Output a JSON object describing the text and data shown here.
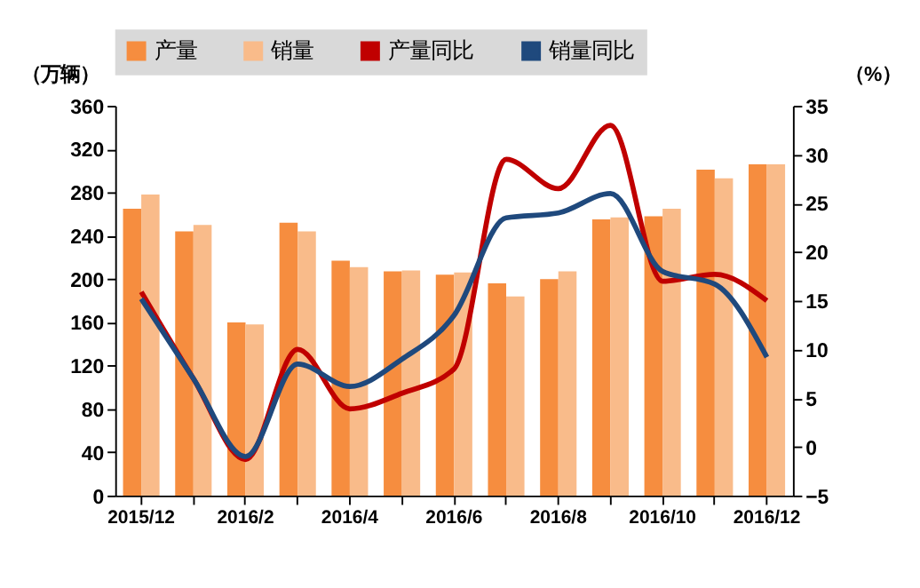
{
  "chart_data": {
    "type": "bar",
    "ylabel": "（万辆）",
    "y2label": "（%）",
    "categories": [
      "2015/12",
      null,
      "2016/2",
      null,
      "2016/4",
      null,
      "2016/6",
      null,
      "2016/8",
      null,
      "2016/10",
      null,
      "2016/12"
    ],
    "series": [
      {
        "name": "产量",
        "color": "#f68d3f",
        "values": [
          265,
          244,
          160,
          252,
          217,
          207,
          204,
          196,
          200,
          255,
          258,
          301,
          306
        ]
      },
      {
        "name": "销量",
        "color": "#f9bb8a",
        "values": [
          278,
          250,
          158,
          244,
          211,
          208,
          206,
          184,
          207,
          257,
          265,
          293,
          306
        ]
      },
      {
        "name": "产量同比",
        "type": "line",
        "axis": "y2",
        "color": "#c00000",
        "values": [
          15.9,
          7.0,
          -1.3,
          10.0,
          3.9,
          5.5,
          8.0,
          29.5,
          26.5,
          33.0,
          17.0,
          17.7,
          15.0
        ]
      },
      {
        "name": "销量同比",
        "type": "line",
        "axis": "y2",
        "color": "#1f497d",
        "values": [
          15.2,
          7.0,
          -1.0,
          8.5,
          6.2,
          9.0,
          13.5,
          23.5,
          24.0,
          26.0,
          18.0,
          16.7,
          9.2
        ]
      }
    ],
    "ylim": [
      0,
      360
    ],
    "yticks": [
      0,
      40,
      80,
      120,
      160,
      200,
      240,
      280,
      320,
      360
    ],
    "y2lim": [
      -5,
      35
    ],
    "y2ticks": [
      -5,
      0,
      5,
      10,
      15,
      20,
      25,
      30,
      35
    ],
    "grid": false,
    "legend": "top",
    "marker": "none",
    "line_style": "solid"
  }
}
